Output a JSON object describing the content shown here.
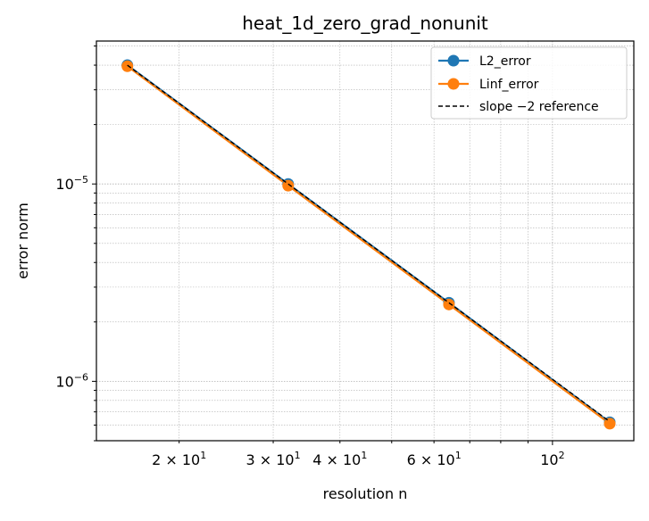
{
  "chart_data": {
    "type": "line",
    "title": "heat_1d_zero_grad_nonunit",
    "xlabel": "resolution n",
    "ylabel": "error norm",
    "xscale": "log",
    "yscale": "log",
    "xlim": [
      14,
      142
    ],
    "ylim": [
      5e-07,
      5.3e-05
    ],
    "x": [
      16,
      32,
      64,
      128
    ],
    "series": [
      {
        "name": "L2_error",
        "values": [
          4e-05,
          1e-05,
          2.5e-06,
          6.2e-07
        ],
        "color": "#1f77b4",
        "marker": "circle",
        "style": "solid"
      },
      {
        "name": "Linf_error",
        "values": [
          3.95e-05,
          9.8e-06,
          2.45e-06,
          6.1e-07
        ],
        "color": "#ff7f0e",
        "marker": "circle",
        "style": "solid"
      },
      {
        "name": "slope −2 reference",
        "values": [
          4e-05,
          1e-05,
          2.5e-06,
          6.25e-07
        ],
        "color": "#000000",
        "marker": "none",
        "style": "dashed"
      }
    ],
    "xticks": [
      {
        "value": 20,
        "base": "2 × 10",
        "exp": "1"
      },
      {
        "value": 30,
        "base": "3 × 10",
        "exp": "1"
      },
      {
        "value": 40,
        "base": "4 × 10",
        "exp": "1"
      },
      {
        "value": 60,
        "base": "6 × 10",
        "exp": "1"
      },
      {
        "value": 100,
        "base": "10",
        "exp": "2"
      }
    ],
    "yticks": [
      {
        "value": 1e-06,
        "base": "10",
        "exp": "−6"
      },
      {
        "value": 1e-05,
        "base": "10",
        "exp": "−5"
      }
    ],
    "grid": true,
    "legend_position": "top-right"
  }
}
